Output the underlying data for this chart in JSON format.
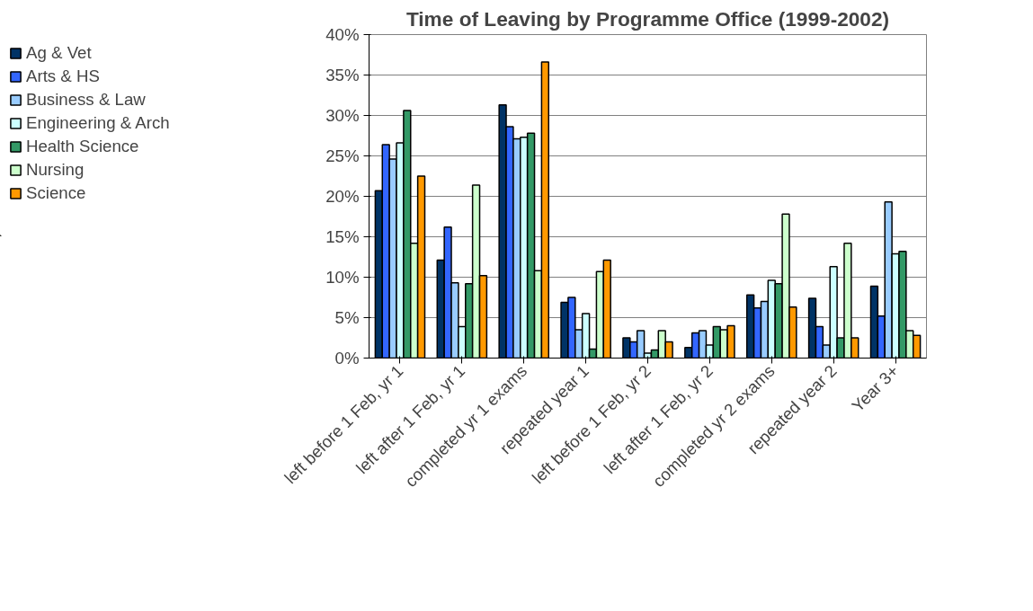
{
  "chart_data": {
    "type": "bar",
    "title": "Time of Leaving by Programme Office (1999-2002)",
    "categories": [
      "left before 1 Feb, yr 1",
      "left after 1 Feb, yr 1",
      "completed yr 1 exams",
      "repeated year 1",
      "left before 1 Feb, yr 2",
      "left after 1 Feb, yr 2",
      "completed yr 2 exams",
      "repeated year 2",
      "Year 3+"
    ],
    "series": [
      {
        "name": "Ag & Vet",
        "color": "#003366",
        "values": [
          20.7,
          12.1,
          31.3,
          6.9,
          2.5,
          1.3,
          7.8,
          7.4,
          8.9
        ]
      },
      {
        "name": "Arts & HS",
        "color": "#3366ff",
        "values": [
          26.4,
          16.2,
          28.6,
          7.5,
          2.0,
          3.1,
          6.2,
          3.9,
          5.2
        ]
      },
      {
        "name": "Business & Law",
        "color": "#99ccff",
        "values": [
          24.6,
          9.3,
          27.1,
          3.5,
          3.4,
          3.4,
          7.0,
          1.6,
          19.3
        ]
      },
      {
        "name": "Engineering & Arch",
        "color": "#ccffff",
        "values": [
          26.6,
          3.9,
          27.3,
          5.5,
          0.6,
          1.6,
          9.6,
          11.3,
          12.9
        ]
      },
      {
        "name": "Health Science",
        "color": "#339966",
        "values": [
          30.6,
          9.2,
          27.8,
          1.1,
          1.0,
          3.9,
          9.2,
          2.5,
          13.2
        ]
      },
      {
        "name": "Nursing",
        "color": "#ccffcc",
        "values": [
          14.2,
          21.4,
          10.8,
          10.7,
          3.4,
          3.5,
          17.8,
          14.2,
          3.4
        ]
      },
      {
        "name": "Science",
        "color": "#ff9900",
        "values": [
          22.5,
          10.2,
          36.6,
          12.1,
          2.0,
          4.0,
          6.3,
          2.5,
          2.8
        ]
      }
    ],
    "ylim": [
      0,
      40
    ],
    "yticks": [
      {
        "value": 0,
        "label": "0%"
      },
      {
        "value": 5,
        "label": "5%"
      },
      {
        "value": 10,
        "label": "10%"
      },
      {
        "value": 15,
        "label": "15%"
      },
      {
        "value": 20,
        "label": "20%"
      },
      {
        "value": 25,
        "label": "25%"
      },
      {
        "value": 30,
        "label": "30%"
      },
      {
        "value": 35,
        "label": "35%"
      },
      {
        "value": 40,
        "label": "40%"
      }
    ],
    "grid": "y",
    "legend": "left"
  }
}
